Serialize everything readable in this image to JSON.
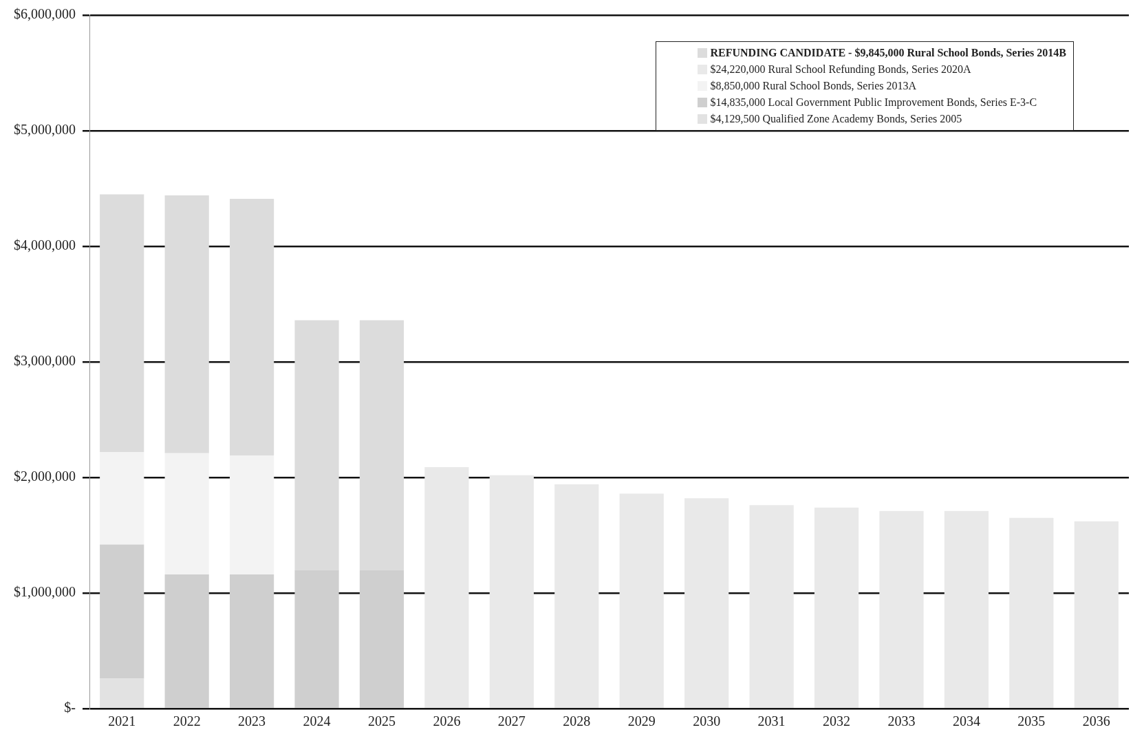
{
  "chart_data": {
    "type": "bar",
    "stacked": true,
    "categories": [
      "2021",
      "2022",
      "2023",
      "2024",
      "2025",
      "2026",
      "2027",
      "2028",
      "2029",
      "2030",
      "2031",
      "2032",
      "2033",
      "2034",
      "2035",
      "2036"
    ],
    "series": [
      {
        "name": "$4,129,500 Qualified Zone Academy Bonds, Series 2005",
        "color": "#e2e2e2",
        "values": [
          260000,
          null,
          null,
          null,
          null,
          null,
          null,
          null,
          null,
          null,
          null,
          null,
          null,
          null,
          null,
          null
        ]
      },
      {
        "name": "$14,835,000 Local Government Public Improvement Bonds, Series E-3-C",
        "color": "#cfcfcf",
        "values": [
          1160000,
          1160000,
          1160000,
          1200000,
          1200000,
          null,
          null,
          null,
          null,
          null,
          null,
          null,
          null,
          null,
          null,
          null
        ]
      },
      {
        "name": "$8,850,000 Rural School Bonds, Series 2013A",
        "color": "#f3f3f3",
        "values": [
          800000,
          1050000,
          1030000,
          null,
          null,
          null,
          null,
          null,
          null,
          null,
          null,
          null,
          null,
          null,
          null,
          null
        ]
      },
      {
        "name": "$24,220,000 Rural School Refunding Bonds, Series 2020A",
        "color": "#e9e9e9",
        "values": [
          null,
          null,
          null,
          null,
          null,
          2090000,
          2020000,
          1940000,
          1860000,
          1820000,
          1760000,
          1740000,
          1710000,
          1710000,
          1650000,
          1620000
        ]
      },
      {
        "name": "REFUNDING CANDIDATE - $9,845,000 Rural School Bonds, Series 2014B",
        "color": "#dcdcdc",
        "values": [
          2230000,
          2230000,
          2220000,
          2160000,
          2160000,
          null,
          null,
          null,
          null,
          null,
          null,
          null,
          null,
          null,
          null,
          null
        ]
      }
    ],
    "ylim": [
      0,
      6000000
    ],
    "yticks": [
      {
        "value": 0,
        "label": "$-"
      },
      {
        "value": 1000000,
        "label": "$1,000,000"
      },
      {
        "value": 2000000,
        "label": "$2,000,000"
      },
      {
        "value": 3000000,
        "label": "$3,000,000"
      },
      {
        "value": 4000000,
        "label": "$4,000,000"
      },
      {
        "value": 5000000,
        "label": "$5,000,000"
      },
      {
        "value": 6000000,
        "label": "$6,000,000"
      }
    ],
    "grid": "y",
    "legend": "top right"
  }
}
